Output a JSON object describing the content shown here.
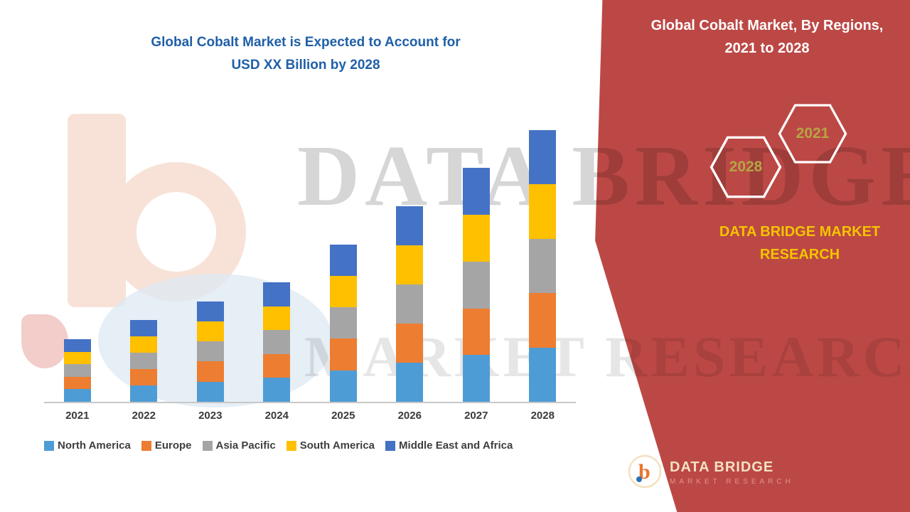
{
  "left": {
    "title_line1": "Global Cobalt Market is Expected to Account for",
    "title_line2": "USD XX Billion by 2028"
  },
  "watermark": {
    "line1": "DATA BRIDGE",
    "line2": "MARKET RESEARCH"
  },
  "right": {
    "title_line1": "Global Cobalt Market, By Regions,",
    "title_line2": "2021 to 2028",
    "hex_back_label": "2028",
    "hex_front_label": "2021",
    "brand_line1": "DATA BRIDGE MARKET",
    "brand_line2": "RESEARCH"
  },
  "footer_logo": {
    "letter": "b",
    "name_line": "DATA BRIDGE",
    "sub_line": "MARKET RESEARCH"
  },
  "colors": {
    "panel_red": "#bc4845",
    "title_blue": "#1f5fa8",
    "brand_gold": "#f4c400",
    "hex_label_olive": "#b6a544"
  },
  "chart_data": {
    "type": "bar",
    "stacked": true,
    "title": "Global Cobalt Market is Expected to Account for USD XX Billion by 2028",
    "xlabel": "",
    "ylabel": "",
    "value_axis_visible": false,
    "legend_position": "bottom",
    "categories": [
      "2021",
      "2022",
      "2023",
      "2024",
      "2025",
      "2026",
      "2027",
      "2028"
    ],
    "series": [
      {
        "name": "North America",
        "color": "#4e9cd5",
        "values": [
          4.6,
          6.0,
          7.4,
          8.8,
          11.6,
          14.4,
          17.2,
          20.0
        ]
      },
      {
        "name": "Europe",
        "color": "#ed7d31",
        "values": [
          4.6,
          6.0,
          7.4,
          8.8,
          11.6,
          14.4,
          17.2,
          20.0
        ]
      },
      {
        "name": "Asia Pacific",
        "color": "#a5a5a5",
        "values": [
          4.6,
          6.0,
          7.4,
          8.8,
          11.6,
          14.4,
          17.2,
          20.0
        ]
      },
      {
        "name": "South America",
        "color": "#ffc000",
        "values": [
          4.6,
          6.0,
          7.4,
          8.8,
          11.6,
          14.4,
          17.2,
          20.0
        ]
      },
      {
        "name": "Middle East and Africa",
        "color": "#4472c4",
        "values": [
          4.6,
          6.0,
          7.4,
          8.8,
          11.6,
          14.4,
          17.2,
          20.0
        ]
      }
    ],
    "totals_relative": [
      23,
      30,
      37,
      44,
      58,
      72,
      86,
      100
    ],
    "note": "Values are relative estimates; no numeric value axis is shown in the figure"
  }
}
